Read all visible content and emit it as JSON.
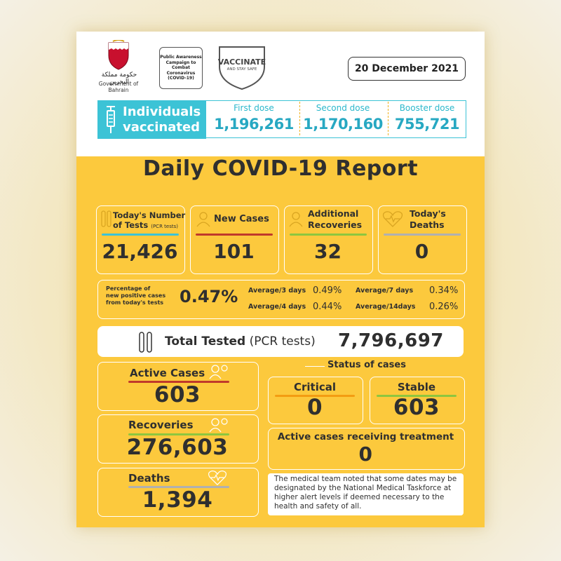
{
  "header": {
    "emblem_caption": "Government of Bahrain",
    "campaign_text": "Public Awareness Campaign to Combat Coronavirus (COVID-19)",
    "vaccinate_title": "VACCINATE",
    "vaccinate_sub": "AND STAY SAFE",
    "date": "20 December 2021"
  },
  "vaccination": {
    "label_line1": "Individuals",
    "label_line2": "vaccinated",
    "doses": [
      {
        "label": "First dose",
        "value": "1,196,261"
      },
      {
        "label": "Second dose",
        "value": "1,170,160"
      },
      {
        "label": "Booster dose",
        "value": "755,721"
      }
    ]
  },
  "title": "Daily COVID-19 Report",
  "daily": {
    "tests": {
      "label_line1": "Today's Number",
      "label_line2": "of Tests",
      "label_note": "(PCR tests)",
      "value": "21,426"
    },
    "new_cases": {
      "label": "New Cases",
      "value": "101"
    },
    "recoveries": {
      "label_line1": "Additional",
      "label_line2": "Recoveries",
      "value": "32"
    },
    "deaths": {
      "label_line1": "Today's",
      "label_line2": "Deaths",
      "value": "0"
    }
  },
  "positivity": {
    "label_line1": "Percentage of",
    "label_line2": "new positive cases",
    "label_line3": "from today's tests",
    "value": "0.47%",
    "averages": [
      {
        "label": "Average/3 days",
        "value": "0.49%"
      },
      {
        "label": "Average/7 days",
        "value": "0.34%"
      },
      {
        "label": "Average/4 days",
        "value": "0.44%"
      },
      {
        "label": "Average/14days",
        "value": "0.26%"
      }
    ]
  },
  "total_tested": {
    "label": "Total Tested",
    "note": "(PCR tests)",
    "value": "7,796,697"
  },
  "cumulative": {
    "active": {
      "label": "Active Cases",
      "value": "603"
    },
    "recoveries": {
      "label": "Recoveries",
      "value": "276,603"
    },
    "deaths": {
      "label": "Deaths",
      "value": "1,394"
    }
  },
  "status": {
    "title": "Status of cases",
    "critical": {
      "label": "Critical",
      "value": "0"
    },
    "stable": {
      "label": "Stable",
      "value": "603"
    },
    "treatment": {
      "label": "Active cases receiving treatment",
      "value": "0"
    }
  },
  "note": "The medical team noted that some dates may be designated by the National Medical Taskforce at higher alert levels if deemed necessary to the health and safety of all.",
  "colors": {
    "background_yellow": "#fcc93d",
    "teal": "#3cc3d6",
    "red": "#c0392b",
    "green": "#8dc63f",
    "orange": "#f39c12",
    "grey": "#b0b0b0"
  },
  "icons": [
    "bahrain-emblem-icon",
    "shield-icon",
    "syringe-icon",
    "test-tubes-icon",
    "person-icon",
    "heart-pulse-icon"
  ]
}
